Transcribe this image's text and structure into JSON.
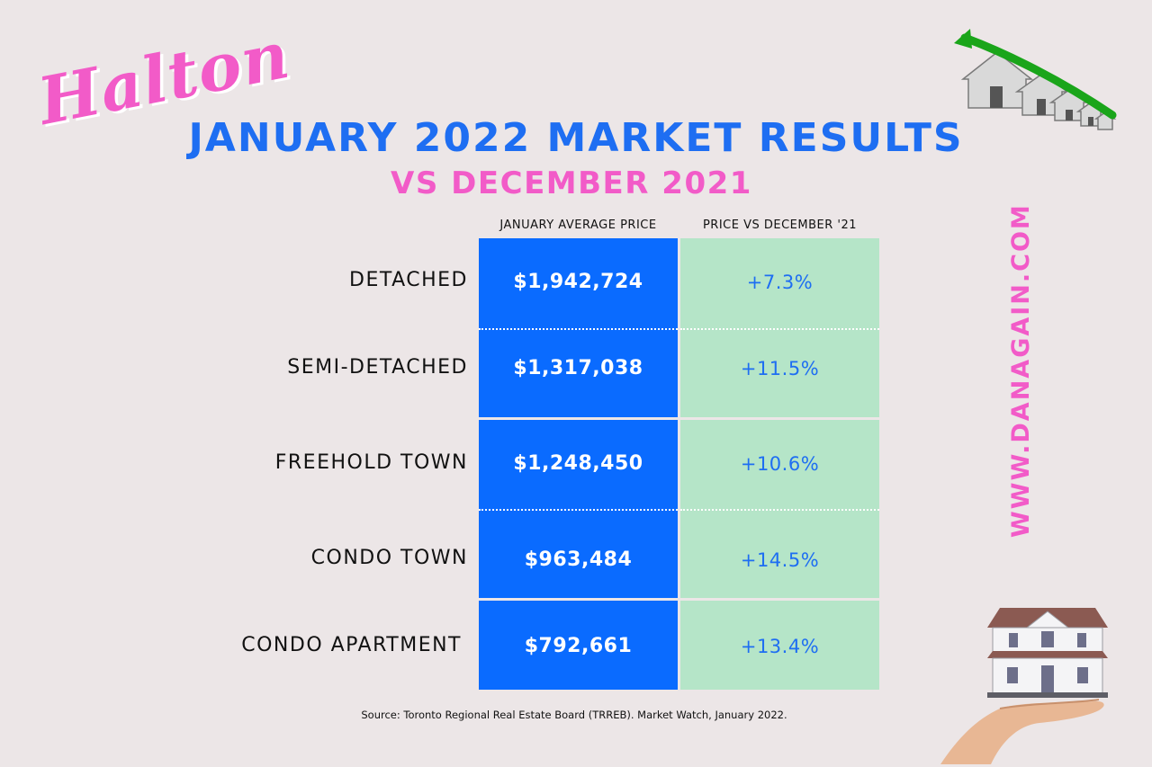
{
  "header": {
    "script_word": "Halton",
    "title": "JANUARY 2022 MARKET RESULTS",
    "subtitle": "VS DECEMBER 2021"
  },
  "table": {
    "col_price_header": "JANUARY AVERAGE PRICE",
    "col_change_header": "PRICE VS DECEMBER '21",
    "rows": [
      {
        "label": "DETACHED",
        "price": "$1,942,724",
        "change": "+7.3%"
      },
      {
        "label": "SEMI-DETACHED",
        "price": "$1,317,038",
        "change": "+11.5%"
      },
      {
        "label": "FREEHOLD TOWN",
        "price": "$1,248,450",
        "change": "+10.6%"
      },
      {
        "label": "CONDO TOWN",
        "price": "$963,484",
        "change": "+14.5%"
      },
      {
        "label": "CONDO APARTMENT",
        "price": "$792,661",
        "change": "+13.4%"
      }
    ]
  },
  "website": "WWW.DANAGAIN.COM",
  "source": "Source: Toronto Regional Real Estate Board (TRREB). Market Watch, January 2022.",
  "icons": {
    "top_right": "houses-rising-arrow-icon",
    "bottom_right": "hand-holding-house-icon"
  },
  "colors": {
    "background": "#ece6e7",
    "brand_blue": "#0a6bff",
    "brand_pink": "#f25bc8",
    "mint": "#b5e5c8"
  }
}
